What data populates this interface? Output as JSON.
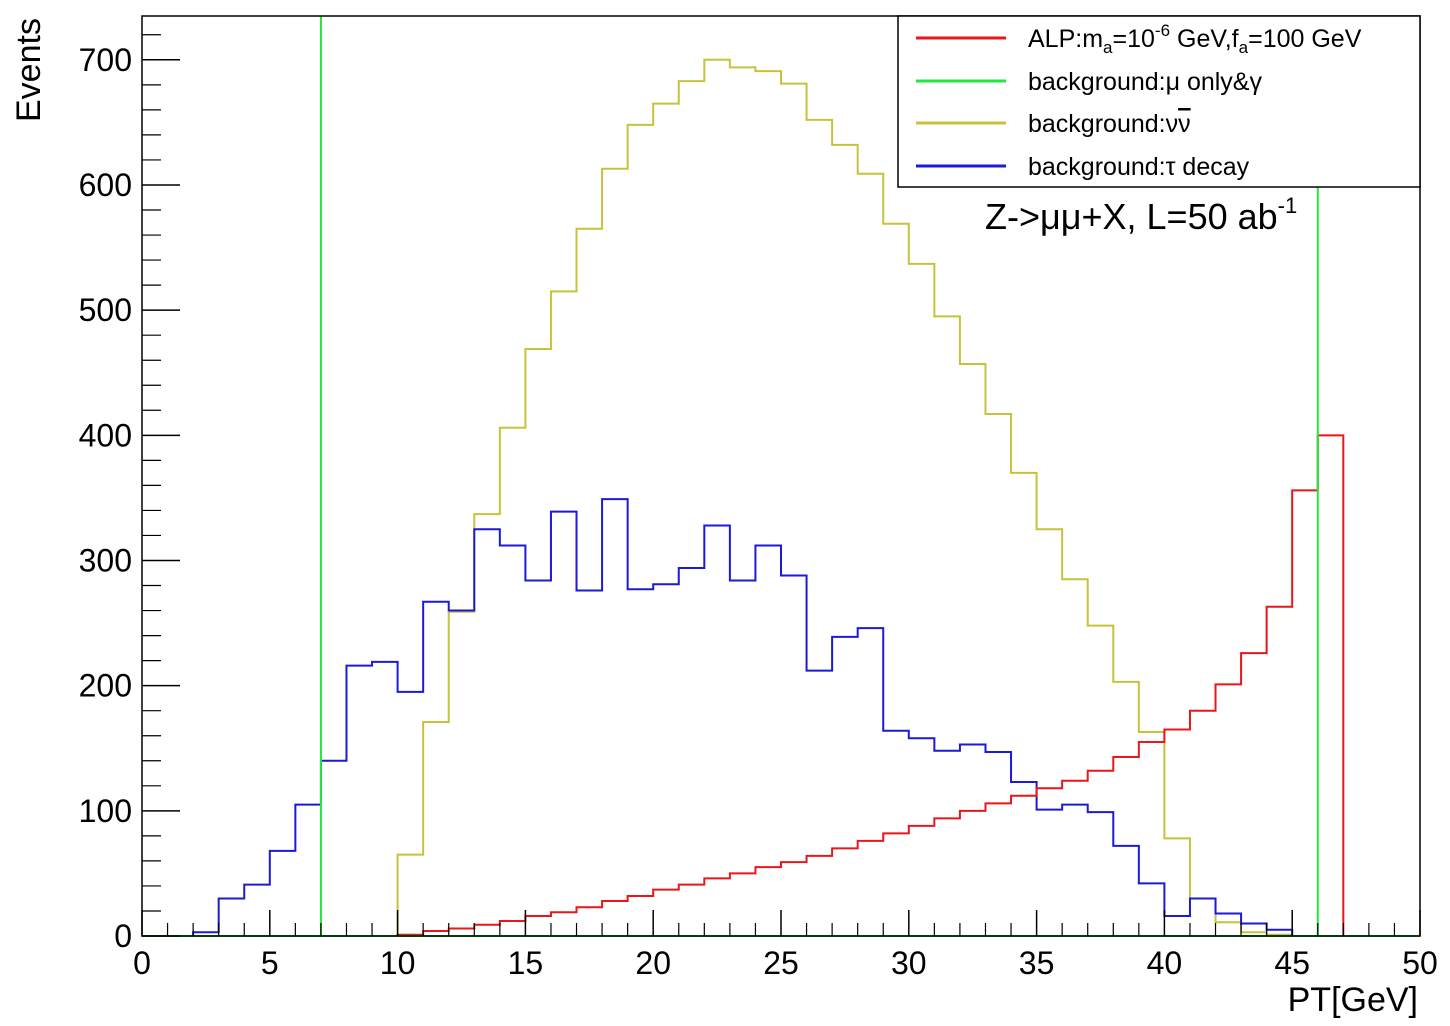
{
  "chart_data": {
    "type": "line",
    "xlabel": "PT[GeV]",
    "ylabel": "Events",
    "xlim": [
      0,
      50
    ],
    "ylim": [
      0,
      735
    ],
    "xticks": [
      0,
      5,
      10,
      15,
      20,
      25,
      30,
      35,
      40,
      45,
      50
    ],
    "xtick_labels": [
      "0",
      "5",
      "10",
      "15",
      "20",
      "25",
      "30",
      "35",
      "40",
      "45",
      "50"
    ],
    "yticks": [
      0,
      100,
      200,
      300,
      400,
      500,
      600,
      700
    ],
    "ytick_labels": [
      "0",
      "100",
      "200",
      "300",
      "400",
      "500",
      "600",
      "700"
    ],
    "grid": false,
    "legend_position": "top-right",
    "annotation": "Z->μμ+X, L=50 ab",
    "annotation_sup": "-1",
    "bins": {
      "start": 0,
      "width": 1,
      "count": 50
    },
    "series": [
      {
        "name": "ALP:m_a=10^-6 GeV,f_a=100 GeV",
        "legend": {
          "t1": "ALP:m",
          "s1": "a",
          "t2": "=10",
          "p1": "-6",
          "t3": " GeV,f",
          "s2": "a",
          "t4": "=100 GeV"
        },
        "color": "#e8171b",
        "style": "hist",
        "range": [
          7,
          46
        ],
        "values": [
          0,
          0,
          0,
          0,
          0,
          0,
          0,
          0,
          0,
          0,
          1,
          4,
          6,
          9,
          12,
          16,
          19,
          23,
          28,
          32,
          37,
          41,
          46,
          50,
          55,
          59,
          64,
          70,
          76,
          82,
          88,
          94,
          100,
          106,
          112,
          118,
          124,
          132,
          143,
          155,
          165,
          180,
          201,
          226,
          263,
          356,
          400,
          0,
          0,
          0
        ]
      },
      {
        "name": "background:μ only&γ",
        "legend": {
          "t1": "background:μ only&γ"
        },
        "color": "#20e83c",
        "style": "hist",
        "values": [
          0,
          0,
          0,
          0,
          0,
          0,
          0,
          0,
          0,
          0,
          0,
          0,
          0,
          0,
          0,
          0,
          0,
          0,
          0,
          0,
          0,
          0,
          0,
          0,
          0,
          0,
          0,
          0,
          0,
          0,
          0,
          0,
          0,
          0,
          0,
          0,
          0,
          0,
          0,
          0,
          0,
          0,
          0,
          0,
          0,
          0,
          0,
          0,
          0,
          0
        ],
        "vlines": [
          7,
          46
        ]
      },
      {
        "name": "background:νν̄",
        "legend": {
          "t1": "background:ν",
          "t2": "ν"
        },
        "color": "#c8c23a",
        "style": "hist",
        "range": [
          10,
          46
        ],
        "values": [
          0,
          0,
          0,
          0,
          0,
          0,
          0,
          0,
          0,
          0,
          65,
          171,
          259,
          337,
          406,
          469,
          515,
          565,
          613,
          648,
          665,
          683,
          700,
          694,
          691,
          681,
          652,
          632,
          609,
          569,
          537,
          495,
          457,
          417,
          370,
          325,
          285,
          248,
          203,
          163,
          78,
          30,
          11,
          3,
          1,
          0,
          0,
          0,
          0,
          0
        ]
      },
      {
        "name": "background:τ decay",
        "legend": {
          "t1": "background:τ decay"
        },
        "color": "#1a1ad8",
        "style": "hist",
        "range": [
          2,
          46
        ],
        "values": [
          0,
          0,
          3,
          30,
          41,
          68,
          105,
          140,
          216,
          219,
          195,
          267,
          260,
          325,
          312,
          284,
          339,
          276,
          349,
          277,
          281,
          294,
          328,
          284,
          312,
          288,
          212,
          239,
          246,
          164,
          158,
          148,
          153,
          147,
          123,
          101,
          105,
          99,
          72,
          42,
          16,
          30,
          18,
          10,
          5,
          0,
          0,
          0,
          0,
          0
        ]
      }
    ]
  }
}
